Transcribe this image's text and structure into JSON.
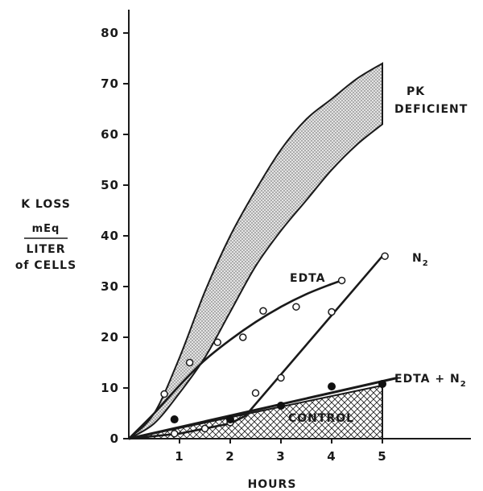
{
  "chart_data": {
    "type": "line",
    "xlabel": "HOURS",
    "ylabel": {
      "line1": "K LOSS",
      "numerator": "mEq",
      "denominator_line1": "LITER",
      "denominator_line2": "of CELLS"
    },
    "xlim": [
      0,
      6.3
    ],
    "ylim": [
      0,
      85
    ],
    "x_ticks": [
      "1",
      "2",
      "3",
      "4",
      "5"
    ],
    "x_tick_values": [
      1,
      2,
      3,
      4,
      5
    ],
    "y_ticks": [
      "0",
      "10",
      "20",
      "30",
      "40",
      "50",
      "60",
      "70",
      "80"
    ],
    "y_tick_values": [
      0,
      10,
      20,
      30,
      40,
      50,
      60,
      70,
      80
    ],
    "series": [
      {
        "name": "PK DEFICIENT",
        "label_line1": "PK",
        "label_line2": "DEFICIENT",
        "kind": "band",
        "upper": [
          [
            0,
            0
          ],
          [
            0.5,
            5
          ],
          [
            1,
            16
          ],
          [
            1.5,
            29
          ],
          [
            2,
            40
          ],
          [
            2.5,
            49
          ],
          [
            3,
            57
          ],
          [
            3.5,
            63
          ],
          [
            4,
            67
          ],
          [
            4.5,
            71
          ],
          [
            5,
            74
          ]
        ],
        "lower": [
          [
            0,
            0
          ],
          [
            0.5,
            3
          ],
          [
            1,
            9
          ],
          [
            1.5,
            16
          ],
          [
            2,
            25
          ],
          [
            2.5,
            34
          ],
          [
            3,
            41
          ],
          [
            3.5,
            47
          ],
          [
            4,
            53
          ],
          [
            4.5,
            58
          ],
          [
            5,
            62
          ]
        ]
      },
      {
        "name": "EDTA",
        "kind": "line_points",
        "marker": "open",
        "curve": [
          [
            0,
            0
          ],
          [
            0.5,
            5
          ],
          [
            1,
            10.5
          ],
          [
            1.5,
            15.5
          ],
          [
            2,
            19.5
          ],
          [
            2.5,
            23
          ],
          [
            3,
            26
          ],
          [
            3.5,
            28.5
          ],
          [
            4,
            30.5
          ],
          [
            4.2,
            31.2
          ]
        ],
        "points": [
          [
            0.7,
            8.8
          ],
          [
            1.2,
            15
          ],
          [
            1.75,
            19
          ],
          [
            2.25,
            20
          ],
          [
            2.65,
            25.2
          ],
          [
            3.3,
            26
          ],
          [
            4.2,
            31.2
          ]
        ]
      },
      {
        "name": "N2",
        "label_main": "N",
        "label_sub": "2",
        "kind": "line_points",
        "marker": "open",
        "curve": [
          [
            0,
            0
          ],
          [
            1,
            1
          ],
          [
            2,
            3
          ],
          [
            2.3,
            4.5
          ],
          [
            5,
            36
          ]
        ],
        "points": [
          [
            0.9,
            1
          ],
          [
            1.5,
            2
          ],
          [
            2,
            3.2
          ],
          [
            2.5,
            9
          ],
          [
            3,
            12
          ],
          [
            4,
            25
          ],
          [
            5.05,
            36
          ]
        ]
      },
      {
        "name": "EDTA + N2",
        "label_main": "EDTA + N",
        "label_sub": "2",
        "kind": "line_points",
        "marker": "filled",
        "curve": [
          [
            0,
            0
          ],
          [
            5.3,
            12
          ]
        ],
        "points": [
          [
            0.9,
            3.8
          ],
          [
            2,
            3.8
          ],
          [
            3,
            6.5
          ],
          [
            4,
            10.3
          ],
          [
            5,
            10.8
          ]
        ]
      },
      {
        "name": "CONTROL",
        "kind": "area",
        "upper": [
          [
            0,
            0
          ],
          [
            5,
            10.5
          ]
        ],
        "lower_end": [
          5,
          0
        ]
      }
    ]
  }
}
